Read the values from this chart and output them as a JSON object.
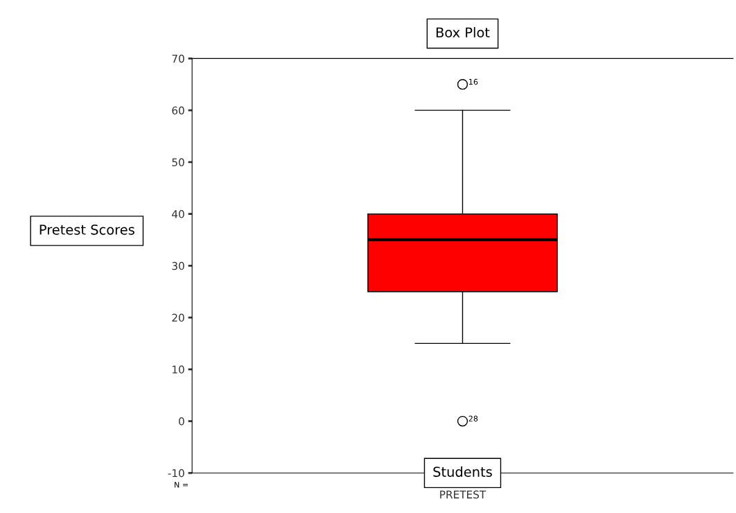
{
  "chart_data": {
    "type": "box",
    "title": "Box Plot",
    "ylabel": "Pretest Scores",
    "xlabel": "Students",
    "categories": [
      "PRETEST"
    ],
    "series": [
      {
        "color": "#ff0000",
        "boxes": [
          {
            "low": 15,
            "q1": 25,
            "median": 35,
            "q3": 40,
            "high": 60,
            "outliers": [
              65,
              0
            ]
          }
        ]
      }
    ],
    "ylim": [
      -10,
      70
    ],
    "yticks": [
      -10,
      0,
      10,
      20,
      30,
      40,
      50,
      60,
      70
    ],
    "grid": false,
    "legend": false,
    "annotations": [
      "16",
      "28",
      "N ="
    ]
  }
}
